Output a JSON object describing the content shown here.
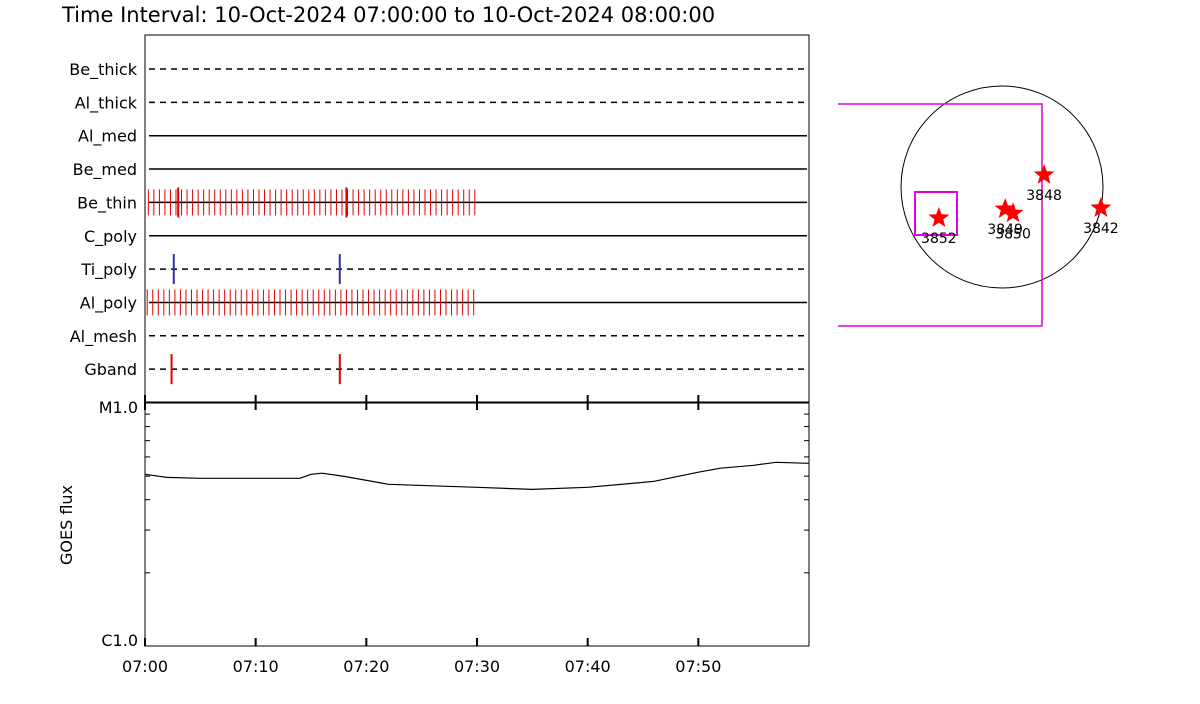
{
  "title": "Time Interval: 10-Oct-2024 07:00:00 to 10-Oct-2024 08:00:00",
  "timeline": {
    "xlim": [
      0,
      60
    ],
    "filters": [
      {
        "name": "Be_thick",
        "line": "dashed"
      },
      {
        "name": "Al_thick",
        "line": "dashed"
      },
      {
        "name": "Al_med",
        "line": "solid"
      },
      {
        "name": "Be_med",
        "line": "solid"
      },
      {
        "name": "Be_thin",
        "line": "solid",
        "color": "#e00000",
        "exposures": [
          0.3,
          0.8,
          1.3,
          1.8,
          2.3,
          2.8,
          3.3,
          3.8,
          4.3,
          4.8,
          5.3,
          5.8,
          6.3,
          6.8,
          7.3,
          7.8,
          8.3,
          8.8,
          9.3,
          9.8,
          10.3,
          10.8,
          11.3,
          11.8,
          12.3,
          12.8,
          13.3,
          13.8,
          14.3,
          14.8,
          15.3,
          15.8,
          16.3,
          16.8,
          17.3,
          17.8,
          18.3,
          18.8,
          19.3,
          19.8,
          20.3,
          20.8,
          21.3,
          21.8,
          22.3,
          22.8,
          23.3,
          23.8,
          24.3,
          24.8,
          25.3,
          25.8,
          26.3,
          26.8,
          27.3,
          27.8,
          28.3,
          28.8,
          29.3,
          29.8
        ],
        "highlights": [
          3.0,
          18.2
        ]
      },
      {
        "name": "C_poly",
        "line": "solid"
      },
      {
        "name": "Ti_poly",
        "line": "dashed",
        "color": "#3030a0",
        "highlights": [
          2.6,
          17.6
        ]
      },
      {
        "name": "Al_poly",
        "line": "solid",
        "color": "#e00000",
        "exposures": [
          0.2,
          0.7,
          1.2,
          1.7,
          2.2,
          2.7,
          3.2,
          3.7,
          4.2,
          4.7,
          5.2,
          5.7,
          6.2,
          6.7,
          7.2,
          7.7,
          8.2,
          8.7,
          9.2,
          9.7,
          10.2,
          10.7,
          11.2,
          11.7,
          12.2,
          12.7,
          13.2,
          13.7,
          14.2,
          14.7,
          15.2,
          15.7,
          16.2,
          16.7,
          17.2,
          17.7,
          18.2,
          18.7,
          19.2,
          19.7,
          20.2,
          20.7,
          21.2,
          21.7,
          22.2,
          22.7,
          23.2,
          23.7,
          24.2,
          24.7,
          25.2,
          25.7,
          26.2,
          26.7,
          27.2,
          27.7,
          28.2,
          28.7,
          29.2,
          29.7
        ]
      },
      {
        "name": "Al_mesh",
        "line": "dashed"
      },
      {
        "name": "Gband",
        "line": "dashed",
        "color": "#e00000",
        "highlights": [
          2.4,
          17.6
        ]
      }
    ]
  },
  "chart_data": {
    "type": "line",
    "ylabel": "GOES flux",
    "log_y": true,
    "color": "#000000",
    "xlim": [
      0,
      60
    ],
    "xticks": [
      {
        "value": 0,
        "label": "07:00"
      },
      {
        "value": 10,
        "label": "07:10"
      },
      {
        "value": 20,
        "label": "07:20"
      },
      {
        "value": 30,
        "label": "07:30"
      },
      {
        "value": 40,
        "label": "07:40"
      },
      {
        "value": 50,
        "label": "07:50"
      }
    ],
    "ylim": [
      1e-06,
      1e-05
    ],
    "yticks": [
      {
        "value": 1e-06,
        "label": "C1.0"
      },
      {
        "value": 1e-05,
        "label": "M1.0"
      }
    ],
    "x": [
      0,
      2,
      5,
      10,
      14,
      15,
      16,
      18,
      22,
      30,
      35,
      40,
      44,
      46,
      50,
      52,
      55,
      57,
      60
    ],
    "values": [
      5.09e-06,
      4.94e-06,
      4.9e-06,
      4.9e-06,
      4.9e-06,
      5.09e-06,
      5.14e-06,
      4.99e-06,
      4.63e-06,
      4.5e-06,
      4.41e-06,
      4.5e-06,
      4.67e-06,
      4.76e-06,
      5.19e-06,
      5.39e-06,
      5.54e-06,
      5.7e-06,
      5.65e-06
    ]
  },
  "sun_map": {
    "color": "#ff0000",
    "regions": [
      {
        "label": "3852",
        "x": -600,
        "y": -295
      },
      {
        "label": "3849",
        "x": 30,
        "y": -210
      },
      {
        "label": "3850",
        "x": 105,
        "y": -250
      },
      {
        "label": "3848",
        "x": 400,
        "y": 115
      },
      {
        "label": "3842",
        "x": 940,
        "y": -200
      }
    ]
  }
}
